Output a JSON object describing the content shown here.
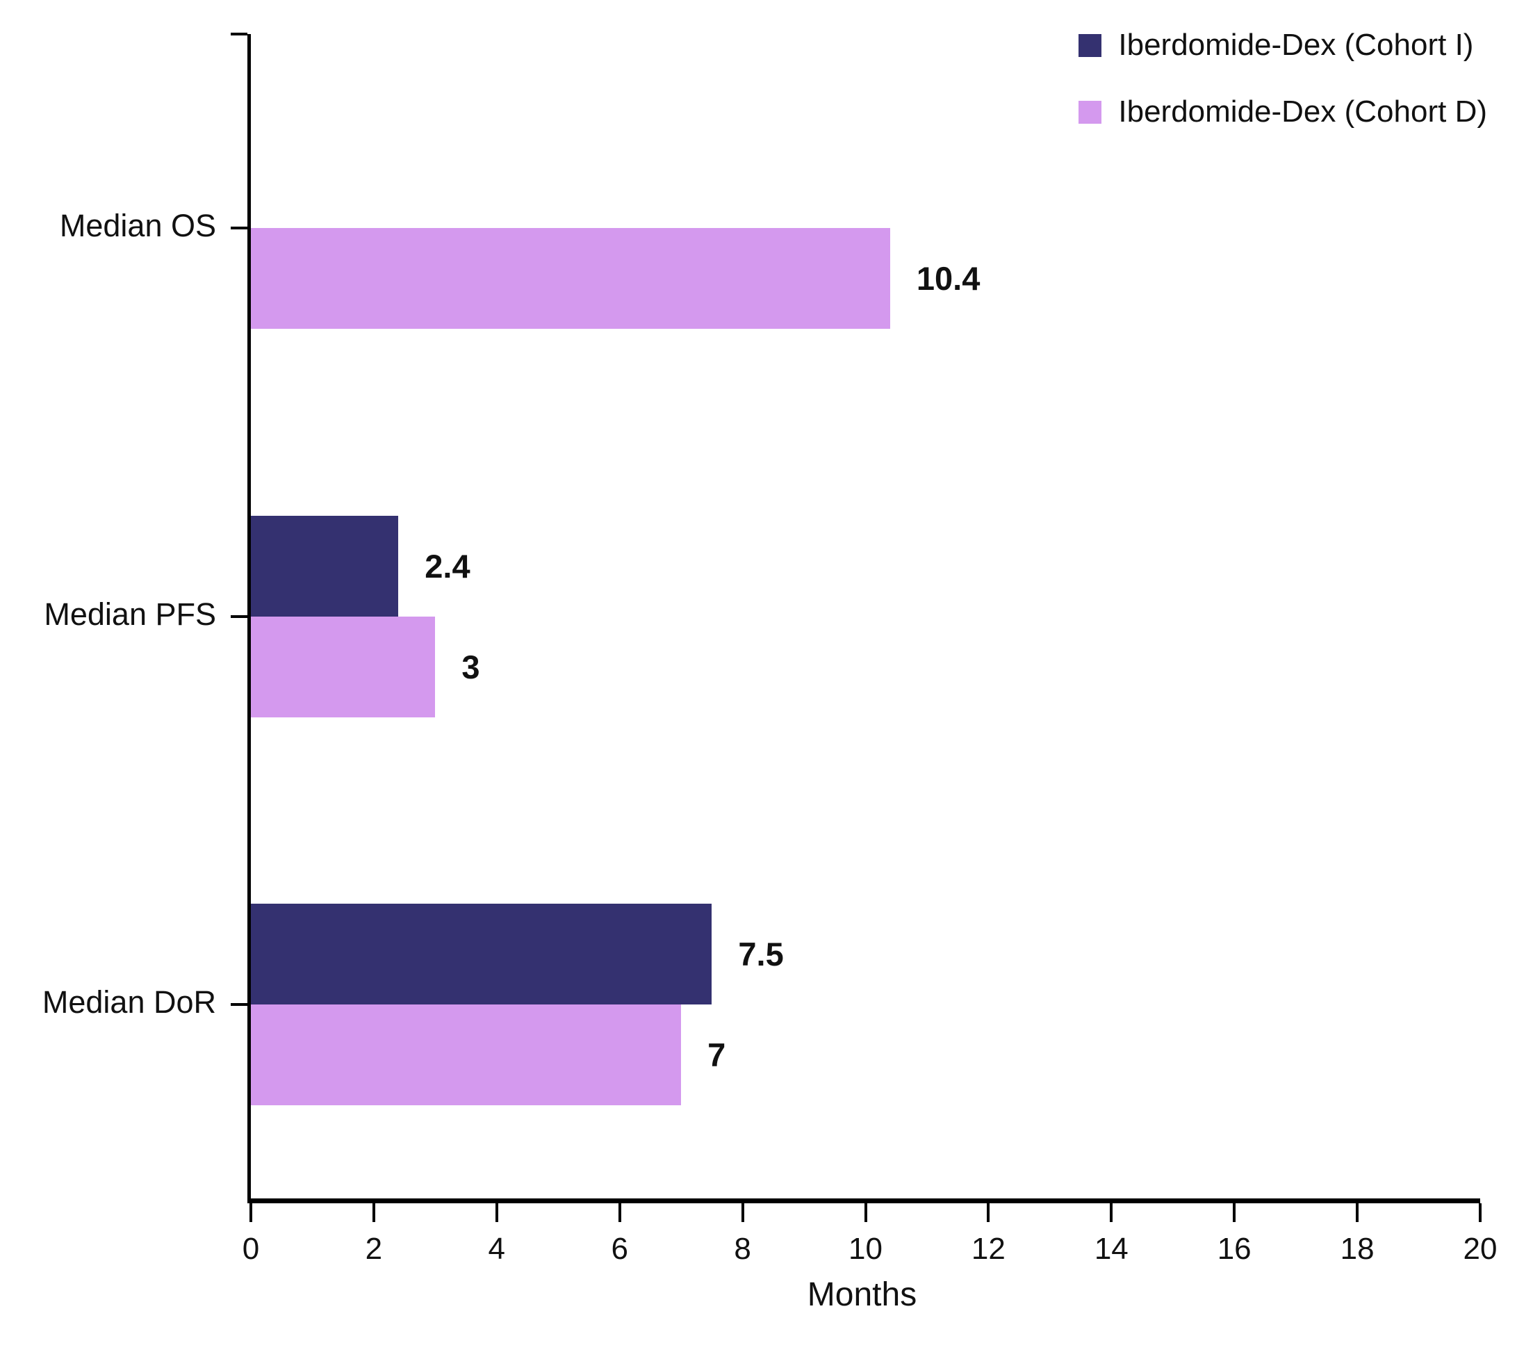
{
  "chart_data": {
    "type": "bar",
    "orientation": "horizontal",
    "categories": [
      "Median OS",
      "Median PFS",
      "Median DoR"
    ],
    "series": [
      {
        "name": "Iberdomide-Dex (Cohort I)",
        "color": "#343170",
        "values": [
          null,
          2.4,
          7.5
        ],
        "labels": [
          null,
          "2.4",
          "7.5"
        ]
      },
      {
        "name": "Iberdomide-Dex (Cohort D)",
        "color": "#D499EE",
        "values": [
          10.4,
          3,
          7
        ],
        "labels": [
          "10.4",
          "3",
          "7"
        ]
      }
    ],
    "xlabel": "Months",
    "xlim": [
      0,
      20
    ],
    "x_ticks": [
      0,
      2,
      4,
      6,
      8,
      10,
      12,
      14,
      16,
      18,
      20
    ],
    "grid": false,
    "legend_position": "top-right",
    "axis_color": "#000000",
    "text_color": "#111111"
  }
}
